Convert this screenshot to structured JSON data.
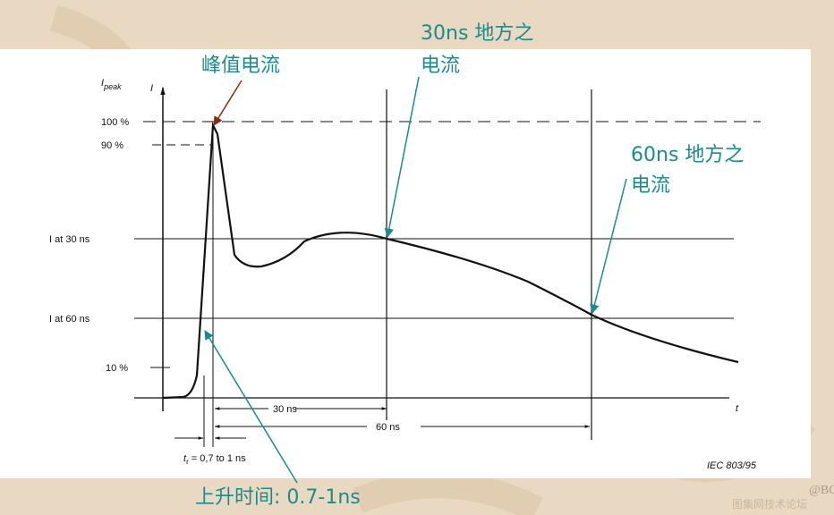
{
  "figure": {
    "annotations": {
      "peak": "峰值电流",
      "at30": [
        "30ns 地方之",
        "电流"
      ],
      "at60": [
        "60ns 地方之",
        "电流"
      ],
      "rise": "上升时间: 0.7-1ns"
    },
    "labels": {
      "ipeak_i": "I",
      "ipeak_sub": "peak",
      "y_axis": "I",
      "x_axis": "t",
      "p100": "100 %",
      "p90": "90 %",
      "i30": "I at 30 ns",
      "i60": "I at 60 ns",
      "p10": "10 %",
      "d30": "30 ns",
      "d60": "60 ns",
      "tr_t": "t",
      "tr_sub": "r",
      "tr_rest": " = 0,7 to 1 ns",
      "source": "IEC 803/95"
    },
    "watermark": [
      "@BC",
      "图集网技术论坛"
    ]
  }
}
